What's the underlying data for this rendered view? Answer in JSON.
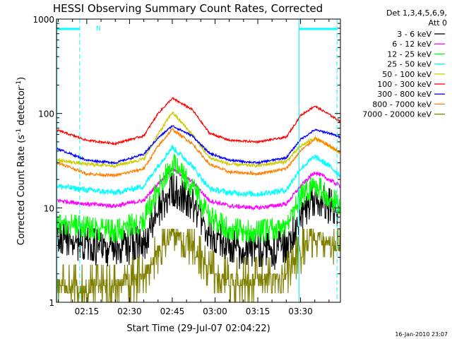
{
  "chart_data": {
    "type": "line",
    "title": "HESSI Observing Summary Count Rates, Corrected",
    "xlabel": "Start Time (29-Jul-07 02:04:22)",
    "ylabel_main": "Corrected Count Rate (s",
    "ylabel_sup1": "-1",
    "ylabel_mid": " detector",
    "ylabel_sup2": "-1",
    "ylabel_end": ")",
    "yscale": "log",
    "ylim": [
      1,
      1000
    ],
    "xlim_minutes": [
      124.37,
      224.0
    ],
    "x_ticks": [
      {
        "label": "02:15",
        "minutes": 135
      },
      {
        "label": "02:30",
        "minutes": 150
      },
      {
        "label": "02:45",
        "minutes": 165
      },
      {
        "label": "03:00",
        "minutes": 180
      },
      {
        "label": "03:15",
        "minutes": 195
      },
      {
        "label": "03:30",
        "minutes": 210
      }
    ],
    "y_ticks": [
      {
        "label": "1000",
        "value": 1000
      },
      {
        "label": "100",
        "value": 100
      },
      {
        "label": "10",
        "value": 10
      },
      {
        "label": "1",
        "value": 1
      }
    ],
    "legend_header": [
      "Det 1,3,4,5,6,9,",
      "Att 0"
    ],
    "footer_timestamp": "16-Jan-2010 23:07",
    "annotation_n": "N",
    "series": [
      {
        "name": "3 - 6 keV",
        "color": "#000000",
        "profile": "det3",
        "noise": 0.16,
        "x": [
          125,
          135,
          145,
          155,
          160,
          165,
          172,
          178,
          185,
          195,
          205,
          210,
          215,
          220,
          224
        ],
        "y": [
          5,
          4.2,
          3.7,
          4.5,
          9,
          16,
          11,
          5.5,
          4,
          3.5,
          4,
          8,
          13,
          11,
          9
        ]
      },
      {
        "name": "6 - 12 keV",
        "color": "#ff00ff",
        "profile": "smooth",
        "noise": 0.05,
        "x": [
          125,
          135,
          145,
          155,
          160,
          165,
          172,
          178,
          185,
          195,
          205,
          210,
          215,
          220,
          224
        ],
        "y": [
          12,
          11,
          10.5,
          12,
          18,
          26,
          19,
          12,
          10.5,
          10,
          11,
          17,
          24,
          20,
          17
        ]
      },
      {
        "name": "12 - 25 keV",
        "color": "#00ff00",
        "profile": "det3",
        "noise": 0.1,
        "x": [
          125,
          135,
          145,
          155,
          160,
          165,
          172,
          178,
          185,
          195,
          205,
          210,
          215,
          220,
          224
        ],
        "y": [
          7,
          6.2,
          5.7,
          7.5,
          16,
          30,
          17,
          8,
          6,
          5.6,
          6.5,
          13,
          18,
          13,
          11
        ]
      },
      {
        "name": "25 - 50 keV",
        "color": "#00ffff",
        "profile": "smooth",
        "noise": 0.07,
        "x": [
          125,
          135,
          145,
          155,
          160,
          165,
          172,
          178,
          185,
          195,
          205,
          210,
          215,
          220,
          224
        ],
        "y": [
          17,
          15.5,
          14.5,
          17,
          28,
          44,
          28,
          16,
          14.5,
          14,
          15.5,
          26,
          35,
          28,
          22
        ]
      },
      {
        "name": "50 - 100 keV",
        "color": "#cccc00",
        "profile": "smooth",
        "noise": 0.04,
        "x": [
          125,
          135,
          145,
          155,
          160,
          165,
          172,
          178,
          185,
          195,
          205,
          210,
          215,
          220,
          224
        ],
        "y": [
          32,
          29,
          28,
          33,
          60,
          103,
          60,
          34,
          29,
          28,
          31,
          45,
          55,
          45,
          38
        ]
      },
      {
        "name": "100 - 300 keV",
        "color": "#ff0000",
        "profile": "smooth",
        "noise": 0.025,
        "x": [
          125,
          135,
          145,
          155,
          160,
          165,
          172,
          178,
          185,
          195,
          205,
          210,
          215,
          220,
          224
        ],
        "y": [
          66,
          52,
          48,
          58,
          100,
          145,
          110,
          62,
          52,
          50,
          56,
          95,
          120,
          98,
          82
        ]
      },
      {
        "name": "300 - 800 keV",
        "color": "#0000ff",
        "profile": "smooth",
        "noise": 0.025,
        "x": [
          125,
          135,
          145,
          155,
          160,
          165,
          172,
          178,
          185,
          195,
          205,
          210,
          215,
          220,
          224
        ],
        "y": [
          42,
          32,
          30,
          37,
          55,
          74,
          58,
          38,
          32,
          30,
          34,
          53,
          67,
          62,
          56
        ]
      },
      {
        "name": "800 - 7000 keV",
        "color": "#ff8000",
        "profile": "smooth",
        "noise": 0.035,
        "x": [
          125,
          135,
          145,
          155,
          160,
          165,
          172,
          178,
          185,
          195,
          205,
          210,
          215,
          220,
          224
        ],
        "y": [
          30,
          23,
          22,
          26,
          45,
          68,
          48,
          29,
          24,
          23,
          26,
          40,
          54,
          46,
          38
        ]
      },
      {
        "name": "7000 - 20000 keV",
        "color": "#808000",
        "profile": "det5",
        "noise": 0.2,
        "x": [
          125,
          135,
          145,
          155,
          160,
          165,
          172,
          178,
          185,
          195,
          205,
          210,
          215,
          220,
          224
        ],
        "y": [
          1.5,
          1.4,
          1.5,
          1.9,
          3.5,
          5.4,
          4,
          2.2,
          1.7,
          1.8,
          2,
          3.5,
          5,
          4.5,
          4
        ]
      }
    ],
    "markers": {
      "cyan_vertical_solid_minutes": [
        124.5,
        209.5
      ],
      "cyan_vertical_dashed_minutes": [
        132.5,
        222.8
      ],
      "cyan_top_bars_minutes": [
        [
          124.5,
          132.5
        ],
        [
          209.5,
          222.8
        ]
      ]
    }
  }
}
